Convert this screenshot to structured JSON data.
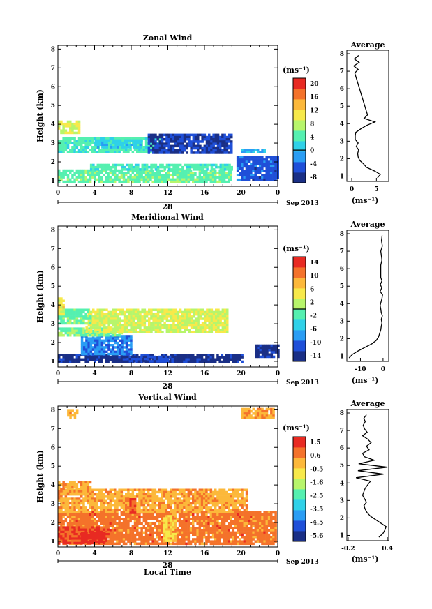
{
  "chart_data": [
    {
      "type": "heatmap",
      "title": "Zonal Wind",
      "ylabel": "Height (km)",
      "xlabel": "",
      "x_ticks": [
        "0",
        "4",
        "8",
        "12",
        "16",
        "20",
        "0"
      ],
      "y_ticks": [
        "1",
        "2",
        "3",
        "4",
        "5",
        "6",
        "7",
        "8"
      ],
      "xlim": [
        0,
        24
      ],
      "ylim": [
        0.7,
        8.2
      ],
      "date_label": "28",
      "date_suffix": "Sep 2013",
      "colorbar": {
        "unit": "(ms⁻¹)",
        "ticks": [
          "20",
          "16",
          "12",
          "8",
          "4",
          "0",
          "-4",
          "-8"
        ],
        "range": [
          -10,
          22
        ],
        "zero_line": 0
      },
      "regions": [
        {
          "t0": 0,
          "t1": 18.8,
          "h0": 1.0,
          "h1": 1.6,
          "v": 5
        },
        {
          "t0": 3.5,
          "t1": 19.0,
          "h0": 1.6,
          "h1": 1.9,
          "v": 4
        },
        {
          "t0": 0,
          "t1": 11.0,
          "h0": 2.5,
          "h1": 3.3,
          "v": 4
        },
        {
          "t0": 9.8,
          "t1": 19.0,
          "h0": 2.5,
          "h1": 3.5,
          "v": -7
        },
        {
          "t0": 19.5,
          "t1": 24,
          "h0": 1.0,
          "h1": 2.3,
          "v": -5
        },
        {
          "t0": 0,
          "t1": 2.2,
          "h0": 3.5,
          "h1": 4.2,
          "v": 9
        },
        {
          "t0": 4.0,
          "t1": 9.0,
          "h0": 2.8,
          "h1": 3.2,
          "v": 1
        },
        {
          "t0": 20.0,
          "t1": 22.5,
          "h0": 2.5,
          "h1": 2.7,
          "v": -1
        }
      ],
      "average_profile": {
        "title": "Average",
        "xlabel": "(ms⁻¹)",
        "x_ticks": [
          "0",
          "5"
        ],
        "xlim": [
          -1,
          7.5
        ],
        "heights": [
          0.9,
          1.1,
          1.3,
          1.5,
          1.7,
          1.9,
          2.1,
          2.3,
          2.5,
          2.7,
          2.9,
          3.1,
          3.3,
          3.5,
          3.7,
          3.9,
          4.1,
          4.3,
          4.5,
          6.9,
          7.1,
          7.3,
          7.5,
          7.7,
          7.9
        ],
        "values": [
          5.2,
          5.8,
          4.6,
          3.0,
          2.4,
          1.6,
          1.3,
          1.2,
          1.4,
          0.9,
          1.3,
          0.7,
          0.7,
          0.8,
          1.8,
          3.0,
          4.7,
          2.5,
          3.2,
          0.6,
          1.3,
          0.4,
          1.5,
          0.5,
          1.4
        ]
      }
    },
    {
      "type": "heatmap",
      "title": "Meridional Wind",
      "ylabel": "Height (km)",
      "xlabel": "",
      "x_ticks": [
        "0",
        "4",
        "8",
        "12",
        "16",
        "20",
        "0"
      ],
      "y_ticks": [
        "1",
        "2",
        "3",
        "4",
        "5",
        "6",
        "7",
        "8"
      ],
      "xlim": [
        0,
        24
      ],
      "ylim": [
        0.7,
        8.2
      ],
      "date_label": "28",
      "date_suffix": "Sep 2013",
      "colorbar": {
        "unit": "(ms⁻¹)",
        "ticks": [
          "14",
          "10",
          "6",
          "2",
          "-2",
          "-6",
          "-10",
          "-14"
        ],
        "range": [
          -16,
          16
        ],
        "zero_line": 0
      },
      "regions": [
        {
          "t0": 0,
          "t1": 20.0,
          "h0": 1.0,
          "h1": 1.4,
          "v": -14
        },
        {
          "t0": 7.5,
          "t1": 12.5,
          "h0": 1.0,
          "h1": 1.3,
          "v": -12
        },
        {
          "t0": 2.5,
          "t1": 8.0,
          "h0": 1.4,
          "h1": 2.4,
          "v": -9
        },
        {
          "t0": 21.5,
          "t1": 24,
          "h0": 1.3,
          "h1": 1.9,
          "v": -14
        },
        {
          "t0": 0,
          "t1": 7.0,
          "h0": 2.4,
          "h1": 2.8,
          "v": 0
        },
        {
          "t0": 3.0,
          "t1": 18.5,
          "h0": 2.6,
          "h1": 3.8,
          "v": 3
        },
        {
          "t0": 0,
          "t1": 3.5,
          "h0": 3.0,
          "h1": 3.8,
          "v": -1
        },
        {
          "t0": 0,
          "t1": 0.6,
          "h0": 3.5,
          "h1": 4.4,
          "v": 5
        }
      ],
      "average_profile": {
        "title": "Average",
        "xlabel": "(ms⁻¹)",
        "x_ticks": [
          "-10",
          "0"
        ],
        "xlim": [
          -16,
          2.5
        ],
        "heights": [
          0.9,
          1.1,
          1.3,
          1.5,
          1.7,
          1.9,
          2.1,
          2.3,
          2.5,
          2.7,
          2.9,
          3.1,
          3.3,
          3.5,
          3.7,
          3.9,
          4.1,
          4.3,
          4.5,
          4.7,
          4.9,
          5.1,
          5.3,
          5.5,
          6.2,
          6.5,
          7.0,
          7.3,
          7.6,
          7.9
        ],
        "values": [
          -15.0,
          -13.5,
          -11.0,
          -8.0,
          -5.0,
          -3.0,
          -2.0,
          -1.5,
          -1.0,
          -0.8,
          -0.5,
          -0.8,
          -0.3,
          -0.8,
          -1.0,
          -1.3,
          -0.9,
          -0.5,
          -0.2,
          -1.3,
          -0.6,
          -1.2,
          -0.5,
          -1.0,
          -1.0,
          -0.5,
          -1.0,
          -0.3,
          -0.7,
          -0.4
        ]
      }
    },
    {
      "type": "heatmap",
      "title": "Vertical Wind",
      "ylabel": "Height (km)",
      "xlabel": "Local Time",
      "x_ticks": [
        "0",
        "4",
        "8",
        "12",
        "16",
        "20",
        "0"
      ],
      "y_ticks": [
        "1",
        "2",
        "3",
        "4",
        "5",
        "6",
        "7",
        "8"
      ],
      "xlim": [
        0,
        24
      ],
      "ylim": [
        0.7,
        8.2
      ],
      "date_label": "28",
      "date_suffix": "Sep 2013",
      "colorbar": {
        "unit": "(ms⁻¹)",
        "ticks": [
          "1.5",
          "0.6",
          "-0.5",
          "-1.6",
          "-2.5",
          "-3.5",
          "-4.5",
          "-5.6"
        ],
        "range": [
          -6.2,
          2.1
        ],
        "zero_line": null
      },
      "regions": [
        {
          "t0": 0,
          "t1": 23.8,
          "h0": 0.9,
          "h1": 2.6,
          "v": 0.8
        },
        {
          "t0": 0,
          "t1": 20.5,
          "h0": 2.6,
          "h1": 3.8,
          "v": 0.2
        },
        {
          "t0": 0,
          "t1": 5.5,
          "h0": 0.9,
          "h1": 1.8,
          "v": 1.4
        },
        {
          "t0": 2.5,
          "t1": 5.0,
          "h0": 1.0,
          "h1": 1.5,
          "v": 1.8
        },
        {
          "t0": 7.8,
          "t1": 8.3,
          "h0": 2.5,
          "h1": 3.3,
          "v": 1.3
        },
        {
          "t0": 11.5,
          "t1": 12.8,
          "h0": 1.0,
          "h1": 2.4,
          "v": -0.5
        },
        {
          "t0": 0,
          "t1": 3.5,
          "h0": 3.5,
          "h1": 4.2,
          "v": 0.3
        },
        {
          "t0": 1.0,
          "t1": 2.0,
          "h0": 7.6,
          "h1": 8.0,
          "v": 0.1
        },
        {
          "t0": 20.0,
          "t1": 23.5,
          "h0": 7.6,
          "h1": 8.1,
          "v": 0.2
        }
      ],
      "average_profile": {
        "title": "Average",
        "xlabel": "(ms⁻¹)",
        "x_ticks": [
          "-0.2",
          "0.4"
        ],
        "xlim": [
          -0.22,
          0.42
        ],
        "heights": [
          0.9,
          1.1,
          1.3,
          1.5,
          1.7,
          1.9,
          2.1,
          2.3,
          2.5,
          2.7,
          2.9,
          3.1,
          3.3,
          3.5,
          3.7,
          3.9,
          4.1,
          4.3,
          4.5,
          4.7,
          4.9,
          5.1,
          5.3,
          5.5,
          5.7,
          5.9,
          6.1,
          6.3,
          6.5,
          6.7,
          6.9,
          7.1,
          7.3,
          7.5,
          7.7,
          7.9
        ],
        "values": [
          0.27,
          0.33,
          0.36,
          0.38,
          0.3,
          0.22,
          0.14,
          0.09,
          0.06,
          0.04,
          0.08,
          0.05,
          0.02,
          0.04,
          0.06,
          0.1,
          0.14,
          -0.08,
          0.34,
          -0.05,
          0.4,
          -0.04,
          0.2,
          0.05,
          0.02,
          0.12,
          0.08,
          0.15,
          0.1,
          0.02,
          0.09,
          0.05,
          0.03,
          0.06,
          0.04,
          0.08
        ]
      }
    }
  ]
}
